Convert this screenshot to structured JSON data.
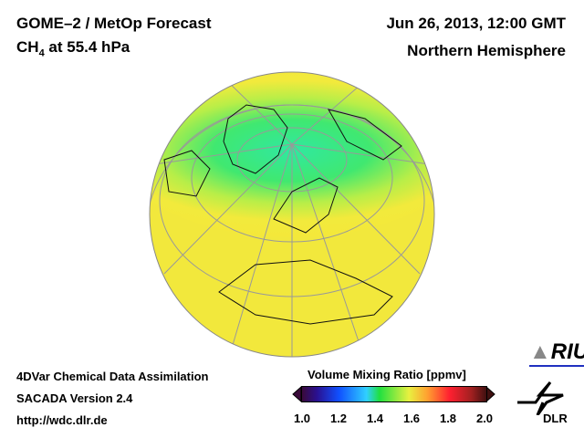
{
  "header": {
    "title": "GOME–2 / MetOp Forecast",
    "species": "CH",
    "species_sub": "4",
    "level": " at 55.4 hPa",
    "datetime": "Jun 26, 2013, 12:00 GMT",
    "region": "Northern Hemisphere"
  },
  "footer": {
    "line1": "4DVar Chemical Data Assimilation",
    "line2": "SACADA Version 2.4",
    "url": "http://wdc.dlr.de"
  },
  "colorbar": {
    "title": "Volume Mixing Ratio [ppmv]",
    "ticks": [
      "1.0",
      "1.2",
      "1.4",
      "1.6",
      "1.8",
      "2.0"
    ],
    "min": 1.0,
    "max": 2.0
  },
  "logos": {
    "riu": "RIU",
    "dlr": "DLR"
  },
  "colors": {
    "ocean_high": "#f2ea3c",
    "low_field": "#3ee87a"
  }
}
